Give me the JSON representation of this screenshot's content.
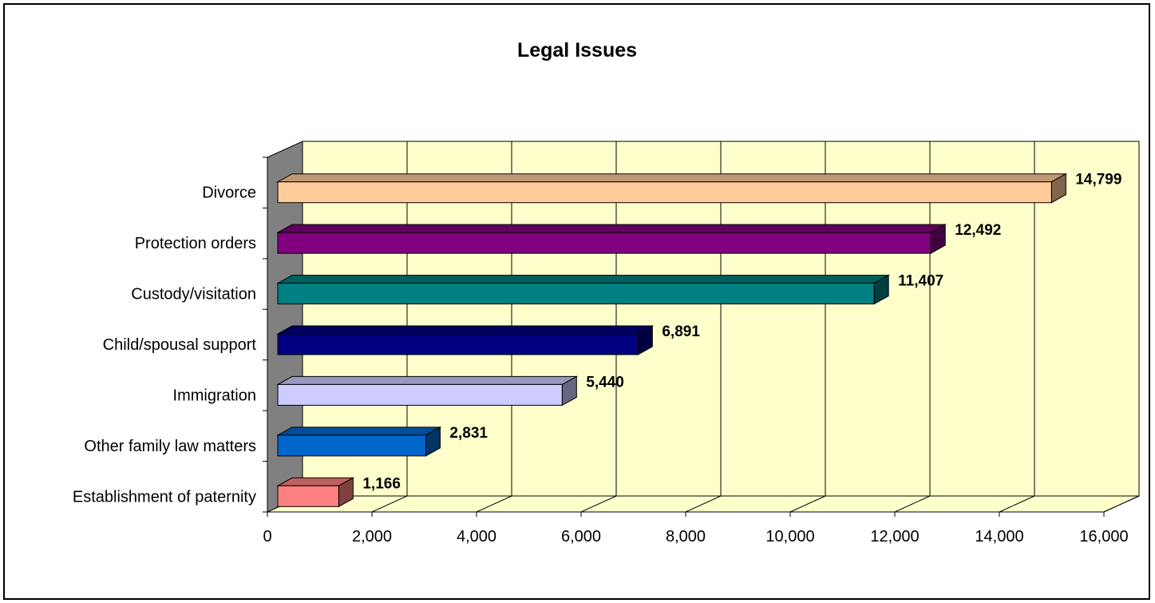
{
  "chart_data": {
    "type": "bar",
    "orientation": "horizontal",
    "style": "3d",
    "title": "Legal Issues",
    "xlabel": "",
    "ylabel": "",
    "xlim": [
      0,
      16000
    ],
    "x_ticks": [
      0,
      2000,
      4000,
      6000,
      8000,
      10000,
      12000,
      14000,
      16000
    ],
    "x_tick_labels": [
      "0",
      "2,000",
      "4,000",
      "6,000",
      "8,000",
      "10,000",
      "12,000",
      "14,000",
      "16,000"
    ],
    "grid": true,
    "legend": "none",
    "categories": [
      "Divorce",
      "Protection orders",
      "Custody/visitation",
      "Child/spousal support",
      "Immigration",
      "Other family law matters",
      "Establishment of paternity"
    ],
    "values": [
      14799,
      12492,
      11407,
      6891,
      5440,
      2831,
      1166
    ],
    "value_labels": [
      "14,799",
      "12,492",
      "11,407",
      "6,891",
      "5,440",
      "2,831",
      "1,166"
    ],
    "bar_colors": [
      "#FFCC99",
      "#800080",
      "#008080",
      "#000080",
      "#CCCCFF",
      "#0066CC",
      "#FF8080"
    ],
    "plot_background": "#FFFFCC",
    "wall_color": "#808080"
  }
}
